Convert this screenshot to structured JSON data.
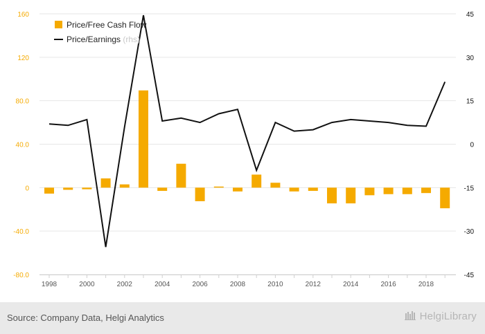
{
  "chart_data": {
    "type": "bar",
    "x": [
      1998,
      1999,
      2000,
      2001,
      2002,
      2003,
      2004,
      2005,
      2006,
      2007,
      2008,
      2009,
      2010,
      2011,
      2012,
      2013,
      2014,
      2015,
      2016,
      2017,
      2018,
      2019
    ],
    "x_tick_labels": [
      "1998",
      "2000",
      "2002",
      "2004",
      "2006",
      "2008",
      "2010",
      "2012",
      "2014",
      "2016",
      "2018"
    ],
    "series": [
      {
        "name": "Price/Free Cash Flow",
        "type": "bar",
        "axis": "left",
        "color": "#f5aa00",
        "values": [
          -5.5,
          -2,
          -1.5,
          8.5,
          3,
          89.5,
          -3,
          22,
          -12.5,
          1,
          -3.5,
          12,
          4.5,
          -3.5,
          -3,
          -14.5,
          -14.5,
          -7,
          -6,
          -6,
          -5,
          -19
        ]
      },
      {
        "name": "Price/Earnings",
        "legend_suffix": "(rhs)",
        "type": "line",
        "axis": "right",
        "color": "#111111",
        "values": [
          7,
          6.5,
          8.5,
          -35.5,
          6,
          44.5,
          8,
          9,
          7.5,
          10.5,
          12,
          -9,
          7.5,
          4.5,
          5,
          7.5,
          8.5,
          8,
          7.5,
          6.5,
          6.2,
          21.5
        ]
      }
    ],
    "left_axis": {
      "ylim": [
        -80,
        160
      ],
      "ticks": [
        "-80.0",
        "-40.0",
        "0",
        "40.0",
        "80.0",
        "120",
        "160"
      ],
      "tick_values": [
        -80,
        -40,
        0,
        40,
        80,
        120,
        160
      ],
      "color": "#f5aa00"
    },
    "right_axis": {
      "ylim": [
        -45,
        45
      ],
      "ticks": [
        "-45",
        "-30",
        "-15",
        "0",
        "15",
        "30",
        "45"
      ],
      "tick_values": [
        -45,
        -30,
        -15,
        0,
        15,
        30,
        45
      ],
      "color": "#111111"
    },
    "legend_placement": "top-left",
    "grid": true
  },
  "footer": {
    "source": "Source: Company Data, Helgi Analytics",
    "logo": "HelgiLibrary"
  }
}
